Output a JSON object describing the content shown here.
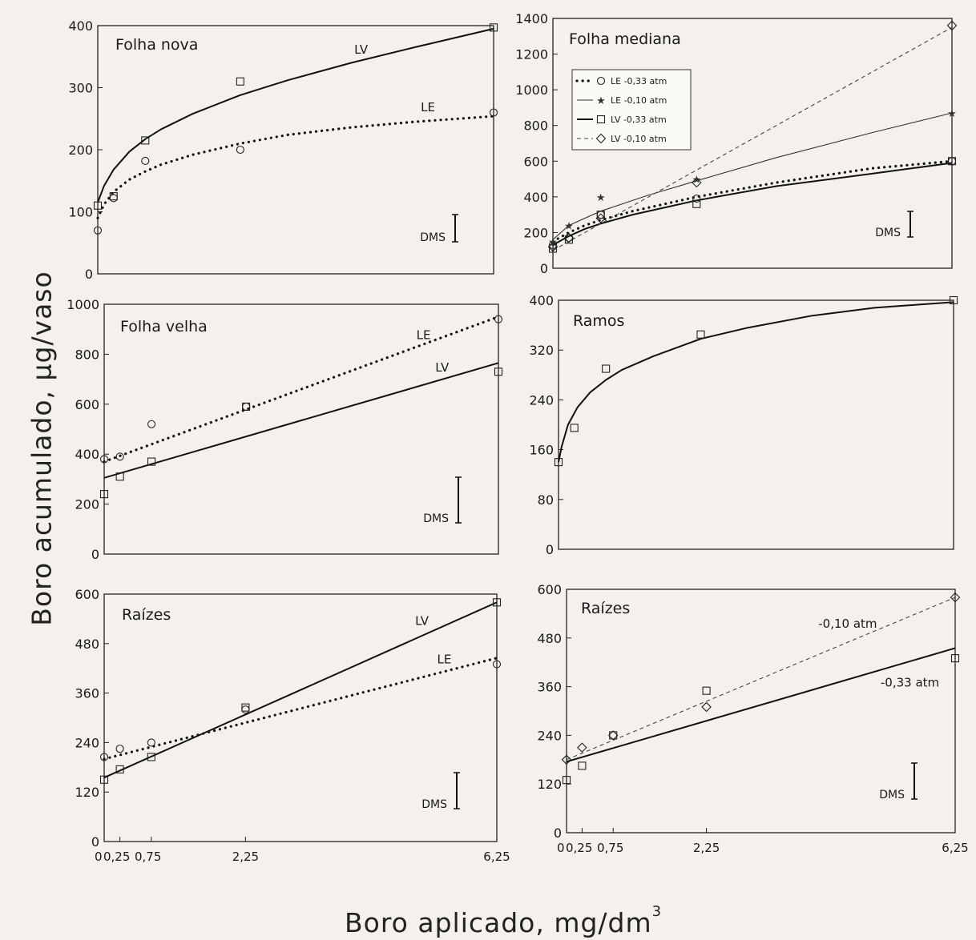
{
  "figure": {
    "ylabel": "Boro acumulado, µg/vaso",
    "xlabel": "Boro aplicado, mg/dm",
    "xlabel_sup": "3",
    "dms_label": "DMS"
  },
  "chart_data": [
    {
      "id": "folha-nova",
      "type": "line",
      "title": "Folha nova",
      "xlim": [
        0,
        6.25
      ],
      "ylim": [
        0,
        400
      ],
      "yticks": [
        0,
        100,
        200,
        300,
        400
      ],
      "xticks": [],
      "xtick_labels": [],
      "series": [
        {
          "name": "LV",
          "style": "solid",
          "marker": "square",
          "x": [
            0,
            0.25,
            0.75,
            2.25,
            6.25
          ],
          "y": [
            110,
            125,
            215,
            310,
            397
          ],
          "fit": {
            "form": "power",
            "x": [
              0,
              0.1,
              0.25,
              0.5,
              0.75,
              1,
              1.5,
              2.25,
              3,
              4,
              5,
              6.25
            ],
            "y": [
              115,
              142,
              168,
              197,
              217,
              233,
              258,
              288,
              312,
              340,
              365,
              395
            ]
          }
        },
        {
          "name": "LE",
          "style": "dotted",
          "marker": "circle",
          "x": [
            0,
            0.25,
            0.75,
            2.25,
            6.25
          ],
          "y": [
            70,
            122,
            182,
            200,
            260
          ],
          "fit": {
            "form": "log",
            "x": [
              0,
              0.1,
              0.25,
              0.5,
              0.75,
              1,
              1.5,
              2.25,
              3,
              4,
              5,
              6.25
            ],
            "y": [
              90,
              112,
              132,
              152,
              165,
              176,
              192,
              210,
              224,
              236,
              245,
              254
            ]
          }
        }
      ],
      "annotations": [
        {
          "text": "LV",
          "x": 4.05,
          "y": 355
        },
        {
          "text": "LE",
          "x": 5.1,
          "y": 262
        }
      ]
    },
    {
      "id": "folha-mediana",
      "type": "line",
      "title": "Folha mediana",
      "xlim": [
        0,
        6.25
      ],
      "ylim": [
        0,
        1400
      ],
      "yticks": [
        0,
        200,
        400,
        600,
        800,
        1000,
        1200,
        1400
      ],
      "xticks": [],
      "xtick_labels": [],
      "legend": {
        "position": "upper-left",
        "entries": [
          "LE -0,33 atm",
          "LE -0,10 atm",
          "LV -0,33 atm",
          "LV -0,10 atm"
        ]
      },
      "series": [
        {
          "name": "LE -0,33 atm",
          "style": "dotted",
          "marker": "circle",
          "x": [
            0,
            0.25,
            0.75,
            2.25,
            6.25
          ],
          "y": [
            130,
            170,
            300,
            390,
            600
          ],
          "fit": {
            "form": "power",
            "x": [
              0,
              0.25,
              0.5,
              0.75,
              1.25,
              2.25,
              3.5,
              5,
              6.25
            ],
            "y": [
              150,
              200,
              240,
              270,
              320,
              400,
              480,
              560,
              600
            ]
          }
        },
        {
          "name": "LE -0,10 atm",
          "style": "thin",
          "marker": "star",
          "x": [
            0,
            0.25,
            0.75,
            2.25,
            6.25
          ],
          "y": [
            150,
            240,
            400,
            500,
            870
          ],
          "fit": {
            "form": "power",
            "x": [
              0,
              0.25,
              0.75,
              1.5,
              2.25,
              3.5,
              5,
              6.25
            ],
            "y": [
              160,
              240,
              320,
              410,
              490,
              620,
              760,
              870
            ]
          }
        },
        {
          "name": "LV -0,33 atm",
          "style": "solid",
          "marker": "square",
          "x": [
            0,
            0.25,
            0.75,
            2.25,
            6.25
          ],
          "y": [
            110,
            160,
            300,
            360,
            600
          ],
          "fit": {
            "form": "power",
            "x": [
              0,
              0.25,
              0.5,
              0.75,
              1.25,
              2.25,
              3.5,
              5,
              6.25
            ],
            "y": [
              130,
              180,
              220,
              250,
              300,
              380,
              460,
              530,
              590
            ]
          }
        },
        {
          "name": "LV -0,10 atm",
          "style": "dashed",
          "marker": "diamond",
          "x": [
            0,
            0.25,
            0.75,
            2.25,
            6.25
          ],
          "y": [
            120,
            170,
            280,
            480,
            1360
          ],
          "fit": {
            "form": "linear",
            "x": [
              0,
              6.25
            ],
            "y": [
              100,
              1350
            ]
          }
        }
      ]
    },
    {
      "id": "folha-velha",
      "type": "line",
      "title": "Folha velha",
      "xlim": [
        0,
        6.25
      ],
      "ylim": [
        0,
        1000
      ],
      "yticks": [
        0,
        200,
        400,
        600,
        800,
        1000
      ],
      "xticks": [],
      "xtick_labels": [],
      "series": [
        {
          "name": "LE",
          "style": "dotted",
          "marker": "circle",
          "x": [
            0,
            0.25,
            0.75,
            2.25,
            6.25
          ],
          "y": [
            380,
            390,
            520,
            590,
            940
          ],
          "fit": {
            "form": "linear",
            "x": [
              0,
              6.25
            ],
            "y": [
              370,
              950
            ]
          }
        },
        {
          "name": "LV",
          "style": "solid",
          "marker": "square",
          "x": [
            0,
            0.25,
            0.75,
            2.25,
            6.25
          ],
          "y": [
            240,
            310,
            370,
            590,
            730
          ],
          "fit": {
            "form": "linear",
            "x": [
              0,
              6.25
            ],
            "y": [
              305,
              765
            ]
          }
        }
      ],
      "annotations": [
        {
          "text": "LE",
          "x": 4.95,
          "y": 860
        },
        {
          "text": "LV",
          "x": 5.25,
          "y": 730
        }
      ]
    },
    {
      "id": "ramos",
      "type": "line",
      "title": "Ramos",
      "xlim": [
        0,
        6.25
      ],
      "ylim": [
        0,
        400
      ],
      "yticks": [
        0,
        80,
        160,
        240,
        320,
        400
      ],
      "xticks": [],
      "xtick_labels": [],
      "series": [
        {
          "name": "",
          "style": "solid",
          "marker": "square",
          "x": [
            0,
            0.25,
            0.75,
            2.25,
            6.25
          ],
          "y": [
            140,
            195,
            290,
            345,
            400
          ],
          "fit": {
            "form": "power",
            "x": [
              0,
              0.05,
              0.15,
              0.3,
              0.5,
              0.75,
              1,
              1.5,
              2.25,
              3,
              4,
              5,
              6.25
            ],
            "y": [
              140,
              165,
              200,
              228,
              252,
              272,
              288,
              310,
              338,
              356,
              375,
              388,
              397
            ]
          }
        }
      ]
    },
    {
      "id": "raizes-solo",
      "type": "line",
      "title": "Raízes",
      "xlim": [
        0,
        6.25
      ],
      "ylim": [
        0,
        600
      ],
      "yticks": [
        0,
        120,
        240,
        360,
        480,
        600
      ],
      "xticks": [
        0,
        0.25,
        0.75,
        2.25,
        6.25
      ],
      "xtick_labels": [
        "0",
        "0,25",
        "0,75",
        "2,25",
        "6,25"
      ],
      "series": [
        {
          "name": "LV",
          "style": "solid",
          "marker": "square",
          "x": [
            0,
            0.25,
            0.75,
            2.25,
            6.25
          ],
          "y": [
            150,
            175,
            205,
            325,
            580
          ],
          "fit": {
            "form": "linear",
            "x": [
              0,
              6.25
            ],
            "y": [
              155,
              580
            ]
          }
        },
        {
          "name": "LE",
          "style": "dotted",
          "marker": "circle",
          "x": [
            0,
            0.25,
            0.75,
            2.25,
            6.25
          ],
          "y": [
            205,
            225,
            240,
            320,
            430
          ],
          "fit": {
            "form": "linear",
            "x": [
              0,
              6.25
            ],
            "y": [
              200,
              445
            ]
          }
        }
      ],
      "annotations": [
        {
          "text": "LV",
          "x": 4.95,
          "y": 525
        },
        {
          "text": "LE",
          "x": 5.3,
          "y": 432
        }
      ]
    },
    {
      "id": "raizes-atm",
      "type": "line",
      "title": "Raízes",
      "xlim": [
        0,
        6.25
      ],
      "ylim": [
        0,
        600
      ],
      "yticks": [
        0,
        120,
        240,
        360,
        480,
        600
      ],
      "xticks": [
        0,
        0.25,
        0.75,
        2.25,
        6.25
      ],
      "xtick_labels": [
        "0",
        "0,25",
        "0,75",
        "2,25",
        "6,25"
      ],
      "series": [
        {
          "name": "-0,10 atm",
          "style": "dashed",
          "marker": "diamond",
          "x": [
            0,
            0.25,
            0.75,
            2.25,
            6.25
          ],
          "y": [
            180,
            210,
            240,
            310,
            580
          ],
          "fit": {
            "form": "linear",
            "x": [
              0,
              6.25
            ],
            "y": [
              180,
              580
            ]
          }
        },
        {
          "name": "-0,33 atm",
          "style": "solid",
          "marker": "square",
          "x": [
            0,
            0.25,
            0.75,
            2.25,
            6.25
          ],
          "y": [
            130,
            165,
            240,
            350,
            430
          ],
          "fit": {
            "form": "linear",
            "x": [
              0,
              6.25
            ],
            "y": [
              175,
              455
            ]
          }
        }
      ],
      "annotations": [
        {
          "text": "-0,10 atm",
          "x": 4.05,
          "y": 505
        },
        {
          "text": "-0,33 atm",
          "x": 5.05,
          "y": 360
        }
      ]
    }
  ]
}
